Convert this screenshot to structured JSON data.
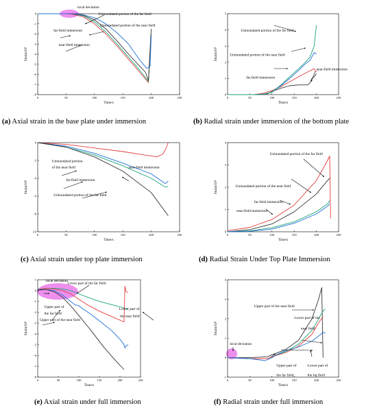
{
  "series_colors": {
    "red": "#e03b3b",
    "blue": "#1f6fd6",
    "green": "#1aa37a",
    "black": "#333333"
  },
  "highlight_color": "#e86ae8",
  "chart_data": [
    {
      "id": "a",
      "type": "line",
      "caption_prefix": "(a)",
      "caption_text": " Axial strain in the base plate under immersion",
      "xlabel": "Time/s",
      "ylabel": "Strain/10³",
      "xlim": [
        0,
        250
      ],
      "ylim": [
        -8,
        0
      ],
      "xticks": [
        0,
        50,
        100,
        150,
        200,
        250
      ],
      "yticks": [
        -8,
        -7,
        -6,
        -5,
        -4,
        -3,
        -2,
        -1,
        0
      ],
      "series": [
        {
          "color": "red",
          "x": [
            0,
            30,
            50,
            60,
            80,
            100,
            120,
            140,
            160,
            180,
            195,
            200
          ],
          "y": [
            0,
            0,
            0,
            -0.05,
            -0.3,
            -1,
            -2,
            -3.2,
            -4.5,
            -5.8,
            -6.8,
            -2
          ]
        },
        {
          "color": "green",
          "x": [
            0,
            30,
            50,
            60,
            80,
            100,
            120,
            140,
            160,
            180,
            195,
            200
          ],
          "y": [
            0,
            0,
            0,
            0,
            -0.2,
            -0.8,
            -1.8,
            -3.0,
            -4.3,
            -5.6,
            -6.7,
            -2
          ]
        },
        {
          "color": "black",
          "x": [
            0,
            30,
            50,
            60,
            80,
            100,
            120,
            140,
            160,
            180,
            190,
            195,
            200
          ],
          "y": [
            0,
            0,
            0,
            0,
            -0.15,
            -0.6,
            -1.5,
            -2.7,
            -4.0,
            -5.2,
            -5.8,
            -6.6,
            -1.5
          ]
        },
        {
          "color": "blue",
          "x": [
            0,
            30,
            50,
            60,
            80,
            100,
            120,
            140,
            160,
            180,
            192,
            198,
            200
          ],
          "y": [
            0,
            0,
            0,
            0,
            -0.1,
            -0.4,
            -1.0,
            -1.9,
            -3.0,
            -4.6,
            -5.4,
            -5.2,
            -2.2
          ]
        }
      ],
      "annotations": [
        {
          "text": "local deviation",
          "x": 70,
          "y": 0.55
        },
        {
          "text": "Uninundated portion of the far field",
          "x": 107,
          "y": -0.15
        },
        {
          "text": "Uninundated portion of the near field",
          "x": 110,
          "y": -1.25
        },
        {
          "text": "far-field immersion",
          "x": 28,
          "y": -1.75
        },
        {
          "text": "near-field immersion",
          "x": 37,
          "y": -3.2
        }
      ]
    },
    {
      "id": "b",
      "type": "line",
      "caption_prefix": "(b)",
      "caption_text": " Radial strain under immersion of the bottom plate",
      "xlabel": "Time/s",
      "ylabel": "Strain/10³",
      "xlim": [
        0,
        250
      ],
      "ylim": [
        0,
        5
      ],
      "xticks": [
        0,
        50,
        100,
        150,
        200,
        250
      ],
      "yticks": [
        0,
        1,
        2,
        3,
        4,
        5
      ],
      "series": [
        {
          "color": "red",
          "x": [
            0,
            60,
            80,
            100,
            120,
            140,
            160,
            180,
            195,
            200
          ],
          "y": [
            0,
            0.01,
            0.08,
            0.25,
            0.5,
            0.8,
            1.1,
            1.4,
            1.6,
            1.4
          ]
        },
        {
          "color": "black",
          "x": [
            0,
            60,
            90,
            100,
            120,
            140,
            160,
            180,
            185,
            190,
            195,
            200
          ],
          "y": [
            0,
            0,
            0.05,
            0.2,
            0.4,
            0.55,
            0.6,
            0.6,
            0.7,
            1.0,
            1.1,
            1.3
          ]
        },
        {
          "color": "blue",
          "x": [
            0,
            60,
            80,
            100,
            120,
            140,
            160,
            175,
            185,
            195,
            200
          ],
          "y": [
            0,
            0,
            0.02,
            0.15,
            0.55,
            1.0,
            1.5,
            1.9,
            2.1,
            2.6,
            2.5
          ]
        },
        {
          "color": "green",
          "x": [
            0,
            60,
            80,
            100,
            120,
            140,
            160,
            175,
            185,
            195,
            200
          ],
          "y": [
            0,
            0,
            0.02,
            0.15,
            0.6,
            1.1,
            1.6,
            2.0,
            2.3,
            3.0,
            4.3
          ]
        }
      ],
      "annotations": [
        {
          "text": "Uninundated portion of the far field",
          "x": 30,
          "y": 3.9
        },
        {
          "text": "Uninundated portion of the near field",
          "x": 5,
          "y": 2.4
        },
        {
          "text": "far-field immersion",
          "x": 42,
          "y": 1.0
        },
        {
          "text": "near-field immersion",
          "x": 200,
          "y": 1.5
        }
      ]
    },
    {
      "id": "c",
      "type": "line",
      "caption_prefix": "(c)",
      "caption_text": " Axial strain under top plate immersion",
      "xlabel": "Time/s",
      "ylabel": "Strain/10³",
      "xlim": [
        0,
        250
      ],
      "ylim": [
        -10,
        0
      ],
      "xticks": [
        0,
        50,
        100,
        150,
        200,
        250
      ],
      "yticks": [
        -10,
        -8,
        -6,
        -4,
        -2,
        0
      ],
      "series": [
        {
          "color": "red",
          "x": [
            0,
            50,
            100,
            150,
            180,
            210,
            220,
            225,
            228,
            230
          ],
          "y": [
            0,
            -0.2,
            -0.6,
            -1.0,
            -1.3,
            -1.6,
            -1.3,
            -0.8,
            -0.3,
            0
          ]
        },
        {
          "color": "blue",
          "x": [
            0,
            50,
            100,
            150,
            200,
            225,
            230
          ],
          "y": [
            0,
            -0.4,
            -1.2,
            -2.3,
            -3.5,
            -4.6,
            -4.3
          ]
        },
        {
          "color": "green",
          "x": [
            0,
            50,
            100,
            150,
            200,
            225,
            230
          ],
          "y": [
            0,
            -0.5,
            -1.4,
            -2.6,
            -4.0,
            -5.0,
            -4.9
          ]
        },
        {
          "color": "black",
          "x": [
            0,
            50,
            100,
            150,
            200,
            230
          ],
          "y": [
            0,
            -0.5,
            -1.6,
            -3.2,
            -5.6,
            -8.2
          ]
        }
      ],
      "annotations": [
        {
          "text": "Uninundated portion",
          "x": 25,
          "y": -2.2
        },
        {
          "text": "of the near field",
          "x": 25,
          "y": -2.9
        },
        {
          "text": "near-field immersion",
          "x": 160,
          "y": -2.9
        },
        {
          "text": "far-field immersion",
          "x": 50,
          "y": -4.3
        },
        {
          "text": "Uninundated portion of the far field",
          "x": 28,
          "y": -6.0
        }
      ]
    },
    {
      "id": "d",
      "type": "line",
      "caption_prefix": "(d)",
      "caption_text": " Radial Strain Under Top Plate Immersion",
      "xlabel": "Time/s",
      "ylabel": "Strain/10³",
      "xlim": [
        0,
        250
      ],
      "ylim": [
        0,
        4
      ],
      "xticks": [
        0,
        50,
        100,
        150,
        200,
        250
      ],
      "yticks": [
        0,
        1,
        2,
        3,
        4
      ],
      "series": [
        {
          "color": "red",
          "x": [
            0,
            50,
            100,
            150,
            200,
            225,
            230,
            232
          ],
          "y": [
            0.05,
            0.2,
            0.55,
            1.2,
            2.3,
            3.2,
            3.4,
            0.6
          ]
        },
        {
          "color": "black",
          "x": [
            0,
            50,
            100,
            150,
            200,
            225,
            230
          ],
          "y": [
            0,
            0.1,
            0.35,
            0.9,
            1.7,
            2.3,
            2.4
          ]
        },
        {
          "color": "green",
          "x": [
            0,
            50,
            100,
            150,
            200,
            225,
            230
          ],
          "y": [
            0,
            0.04,
            0.18,
            0.45,
            0.9,
            1.25,
            1.4
          ]
        },
        {
          "color": "blue",
          "x": [
            0,
            50,
            100,
            150,
            200,
            225,
            230
          ],
          "y": [
            0,
            0.02,
            0.12,
            0.38,
            0.8,
            1.15,
            1.25
          ]
        }
      ],
      "annotations": [
        {
          "text": "Uninundated portion of the far field",
          "x": 95,
          "y": 3.45
        },
        {
          "text": "Uninundated portion of the near field",
          "x": 18,
          "y": 2.0
        },
        {
          "text": "far-field immersion",
          "x": 60,
          "y": 1.3
        },
        {
          "text": "near-field immersion",
          "x": 20,
          "y": 0.9
        }
      ]
    },
    {
      "id": "e",
      "type": "line",
      "caption_prefix": "(e)",
      "caption_text": " Axial strain under full immersion",
      "xlabel": "Time/s",
      "ylabel": "Strain/10³",
      "xlim": [
        0,
        250
      ],
      "ylim": [
        -8,
        1
      ],
      "xticks": [
        0,
        50,
        100,
        150,
        200,
        250
      ],
      "yticks": [
        -8,
        -7,
        -6,
        -5,
        -4,
        -3,
        -2,
        -1,
        0,
        1
      ],
      "series": [
        {
          "color": "green",
          "x": [
            0,
            20,
            40,
            60,
            80,
            100,
            120,
            150,
            180,
            210,
            220
          ],
          "y": [
            0.1,
            0.2,
            0.2,
            0.15,
            0,
            -0.3,
            -0.6,
            -1.0,
            -1.3,
            -1.6,
            -1.7
          ]
        },
        {
          "color": "red",
          "x": [
            0,
            20,
            40,
            60,
            80,
            100,
            120,
            150,
            180,
            210,
            212,
            215,
            220
          ],
          "y": [
            0.1,
            0.2,
            0.15,
            0,
            -0.3,
            -0.8,
            -1.3,
            -1.9,
            -2.4,
            -2.9,
            0.4,
            -0.1,
            -0.2
          ]
        },
        {
          "color": "blue",
          "x": [
            0,
            20,
            40,
            60,
            80,
            90,
            100,
            110,
            130,
            150,
            180,
            200,
            210,
            212,
            215,
            220
          ],
          "y": [
            0.1,
            0.1,
            0,
            -0.4,
            -1.0,
            -1.3,
            -1.4,
            -1.7,
            -2.2,
            -2.8,
            -3.7,
            -4.5,
            -5.0,
            -5.3,
            -5.1,
            -5.0
          ]
        },
        {
          "color": "black",
          "x": [
            0,
            20,
            40,
            60,
            80,
            100,
            130,
            160,
            190,
            210
          ],
          "y": [
            0.05,
            0.1,
            -0.1,
            -0.6,
            -1.4,
            -2.3,
            -3.7,
            -5.2,
            -6.5,
            -7.3
          ]
        }
      ],
      "annotations": [
        {
          "text": "local deviation",
          "x": 20,
          "y": 0.8
        },
        {
          "text": "Lower part of the far field",
          "x": 72,
          "y": 0.6
        },
        {
          "text": "Lower part of",
          "x": 198,
          "y": -1.8
        },
        {
          "text": "the near field",
          "x": 200,
          "y": -2.45
        },
        {
          "text": "Upper part of",
          "x": 16,
          "y": -1.6
        },
        {
          "text": "the far field",
          "x": 16,
          "y": -2.2
        },
        {
          "text": "Upper part of the near field",
          "x": 5,
          "y": -2.8
        }
      ]
    },
    {
      "id": "f",
      "type": "line",
      "caption_prefix": "(f)",
      "caption_text": " Radial strain under full immersion",
      "xlabel": "Time/s",
      "ylabel": "Strain/10³",
      "xlim": [
        0,
        250
      ],
      "ylim": [
        -1,
        4
      ],
      "xticks": [
        0,
        50,
        100,
        150,
        200,
        250
      ],
      "yticks": [
        -1,
        0,
        1,
        2,
        3,
        4
      ],
      "series": [
        {
          "color": "black",
          "x": [
            0,
            50,
            90,
            100,
            130,
            160,
            190,
            205,
            212,
            215
          ],
          "y": [
            0,
            0,
            0.05,
            0.15,
            0.4,
            0.9,
            2.0,
            3.0,
            3.6,
            0
          ]
        },
        {
          "color": "green",
          "x": [
            0,
            50,
            90,
            100,
            130,
            160,
            190,
            205,
            215,
            220
          ],
          "y": [
            0,
            -0.05,
            -0.05,
            0.05,
            0.3,
            0.7,
            1.4,
            2.0,
            2.4,
            2.5
          ]
        },
        {
          "color": "red",
          "x": [
            0,
            50,
            90,
            100,
            130,
            160,
            190,
            205,
            215
          ],
          "y": [
            0,
            -0.05,
            -0.05,
            0.05,
            0.25,
            0.6,
            1.2,
            1.8,
            2.1
          ]
        },
        {
          "color": "blue",
          "x": [
            0,
            50,
            85,
            90,
            100,
            110,
            130,
            160,
            190,
            210,
            215,
            220
          ],
          "y": [
            0,
            -0.05,
            -0.15,
            -0.1,
            0,
            0.15,
            0.35,
            0.55,
            0.85,
            1.2,
            1.3,
            1.25
          ]
        }
      ],
      "annotations": [
        {
          "text": "Upper part of the near field",
          "x": 60,
          "y": 2.6
        },
        {
          "text": "Lower part of the",
          "x": 150,
          "y": 2.0
        },
        {
          "text": "near field",
          "x": 165,
          "y": 1.45
        },
        {
          "text": "local deviation",
          "x": 5,
          "y": 0.65
        },
        {
          "text": "Upper part of",
          "x": 110,
          "y": -0.45
        },
        {
          "text": "the far field",
          "x": 110,
          "y": -0.95
        },
        {
          "text": "Lower part of",
          "x": 180,
          "y": -0.45
        },
        {
          "text": "the far field",
          "x": 180,
          "y": -0.95
        }
      ]
    }
  ]
}
